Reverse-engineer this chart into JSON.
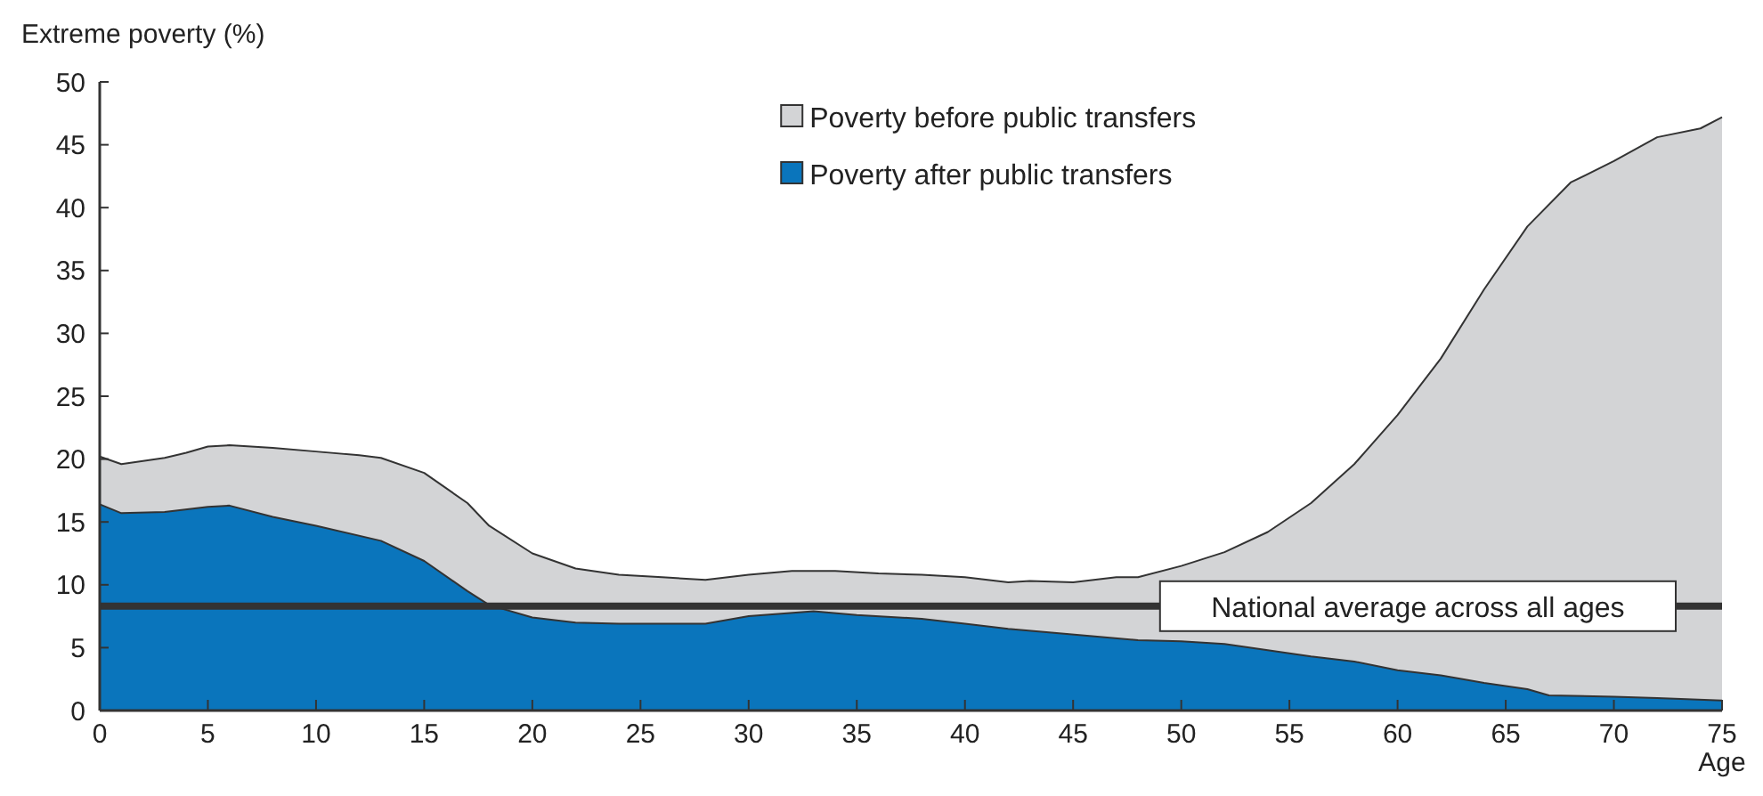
{
  "chart_data": {
    "type": "area",
    "ylabel": "Extreme poverty (%)",
    "xlabel": "Age",
    "xlim": [
      0,
      75
    ],
    "xticks": [
      0,
      5,
      10,
      15,
      20,
      25,
      30,
      35,
      40,
      45,
      50,
      55,
      60,
      65,
      70,
      75
    ],
    "ylim": [
      0,
      50
    ],
    "yticks": [
      0,
      5,
      10,
      15,
      20,
      25,
      30,
      35,
      40,
      45,
      50
    ],
    "grid": false,
    "legend": "top",
    "series": [
      {
        "name": "Poverty before public transfers",
        "color": "#d3d4d6",
        "x": [
          0,
          1,
          3,
          4,
          5,
          6,
          8,
          10,
          12,
          13,
          15,
          17,
          18,
          20,
          22,
          24,
          26,
          28,
          30,
          32,
          34,
          36,
          38,
          40,
          42,
          43,
          45,
          47,
          48,
          50,
          52,
          54,
          56,
          58,
          60,
          62,
          64,
          66,
          68,
          70,
          72,
          74,
          75
        ],
        "values": [
          20.2,
          19.6,
          20.1,
          20.5,
          21,
          21.1,
          20.9,
          20.6,
          20.3,
          20.1,
          18.9,
          16.5,
          14.7,
          12.5,
          11.3,
          10.8,
          10.6,
          10.4,
          10.8,
          11.1,
          11.1,
          10.9,
          10.8,
          10.6,
          10.2,
          10.3,
          10.2,
          10.6,
          10.6,
          11.5,
          12.6,
          14.2,
          16.5,
          19.6,
          23.5,
          28,
          33.5,
          38.5,
          42,
          43.7,
          45.6,
          46.3,
          47.2
        ]
      },
      {
        "name": "Poverty after public transfers",
        "color": "#0a75bc",
        "x": [
          0,
          1,
          3,
          5,
          6,
          8,
          10,
          13,
          15,
          17,
          18,
          20,
          22,
          24,
          26,
          28,
          30,
          33,
          35,
          38,
          40,
          42,
          44,
          46,
          48,
          50,
          52,
          54,
          56,
          58,
          60,
          62,
          64,
          66,
          67,
          70,
          72,
          75
        ],
        "values": [
          16.4,
          15.7,
          15.8,
          16.2,
          16.3,
          15.4,
          14.7,
          13.5,
          11.9,
          9.5,
          8.4,
          7.4,
          7,
          6.9,
          6.9,
          6.9,
          7.5,
          7.9,
          7.6,
          7.3,
          6.9,
          6.5,
          6.2,
          5.9,
          5.6,
          5.5,
          5.3,
          4.8,
          4.3,
          3.9,
          3.2,
          2.8,
          2.2,
          1.7,
          1.2,
          1.1,
          1,
          0.8
        ]
      }
    ],
    "ref_lines": [
      {
        "axis": "y",
        "value": 8.3,
        "label": "National average across all ages",
        "color": "#333333"
      }
    ]
  }
}
